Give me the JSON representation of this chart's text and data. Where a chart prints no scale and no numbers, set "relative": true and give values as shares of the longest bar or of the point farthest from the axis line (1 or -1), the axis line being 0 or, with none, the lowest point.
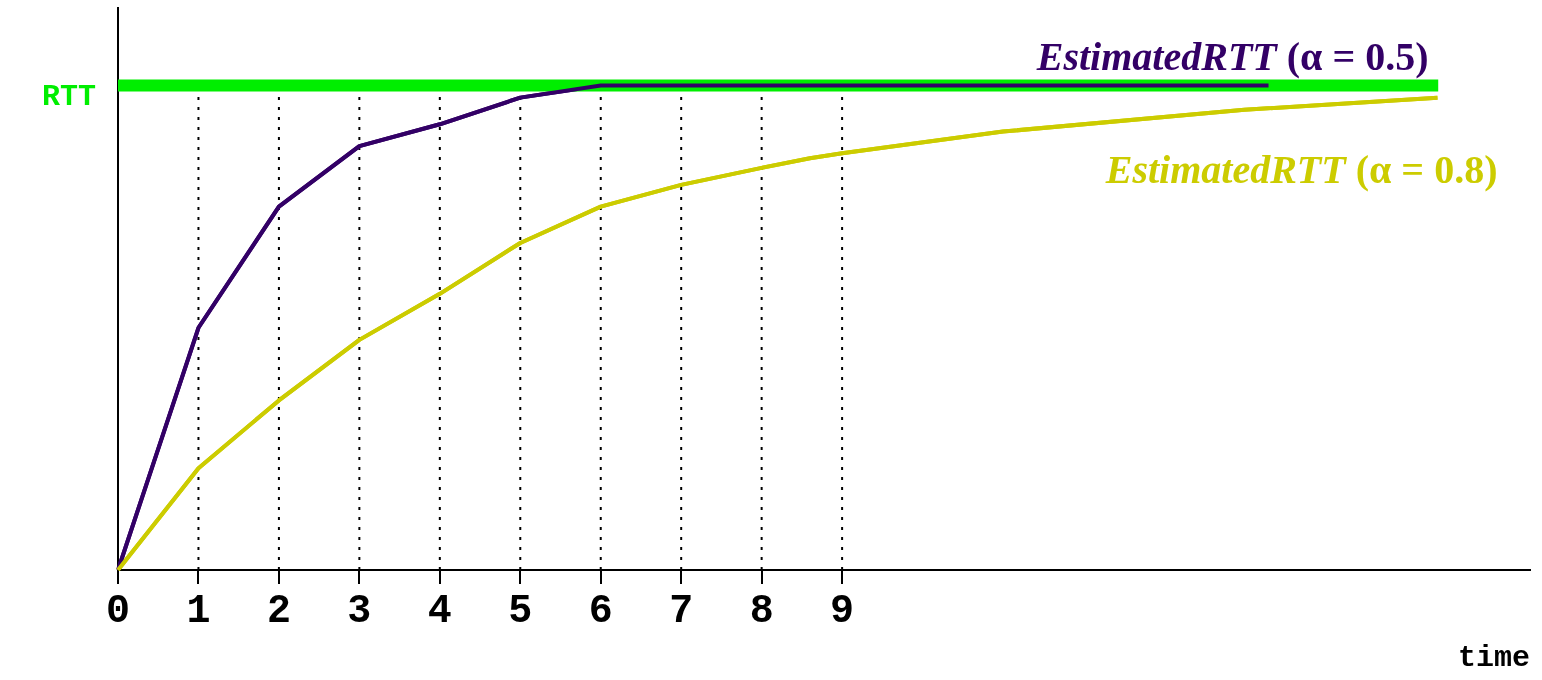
{
  "chart_data": {
    "type": "line",
    "relative": true,
    "xlabel": "time",
    "xlim": [
      0,
      17.55
    ],
    "xticks": [
      0,
      1,
      2,
      3,
      4,
      5,
      6,
      7,
      8,
      9
    ],
    "grid": "x",
    "legend": false,
    "marker": "none",
    "line_style": "solid",
    "ref_lines": [
      {
        "axis": "y",
        "value": 1,
        "label": "RTT",
        "color": "#00ee00"
      }
    ],
    "series": [
      {
        "name": "EstimatedRTT (α = 0.5)",
        "color": "#330066",
        "x": [
          0,
          1,
          2,
          3,
          4,
          5,
          6,
          14.3
        ],
        "values": [
          0,
          0.5,
          0.75,
          0.875,
          0.92,
          0.975,
          1,
          1
        ]
      },
      {
        "name": "EstimatedRTT (α = 0.8)",
        "color": "#cccc00",
        "x": [
          0,
          1,
          2,
          3,
          4,
          5,
          6,
          7,
          8,
          8.6,
          9,
          11,
          14,
          16.4
        ],
        "values": [
          0,
          0.21,
          0.35,
          0.475,
          0.57,
          0.675,
          0.75,
          0.795,
          0.83,
          0.85,
          0.86,
          0.905,
          0.95,
          0.975
        ]
      }
    ]
  }
}
